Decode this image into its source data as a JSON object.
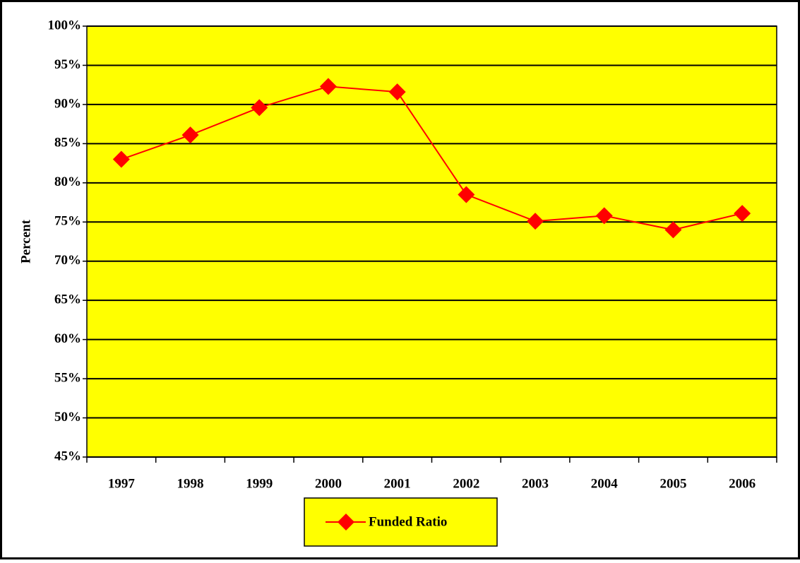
{
  "chart_data": {
    "type": "line",
    "y_label": "Percent",
    "categories": [
      "1997",
      "1998",
      "1999",
      "2000",
      "2001",
      "2002",
      "2003",
      "2004",
      "2005",
      "2006"
    ],
    "series": [
      {
        "name": "Funded Ratio",
        "color": "#ff0000",
        "values": [
          83.0,
          86.1,
          89.6,
          92.3,
          91.6,
          78.5,
          75.1,
          75.8,
          74.0,
          76.1
        ]
      }
    ],
    "ylim": [
      45,
      100
    ],
    "yticks": [
      {
        "value": 45,
        "label": "45%"
      },
      {
        "value": 50,
        "label": "50%"
      },
      {
        "value": 55,
        "label": "55%"
      },
      {
        "value": 60,
        "label": "60%"
      },
      {
        "value": 65,
        "label": "65%"
      },
      {
        "value": 70,
        "label": "70%"
      },
      {
        "value": 75,
        "label": "75%"
      },
      {
        "value": 80,
        "label": "80%"
      },
      {
        "value": 85,
        "label": "85%"
      },
      {
        "value": 90,
        "label": "90%"
      },
      {
        "value": 95,
        "label": "95%"
      },
      {
        "value": 100,
        "label": "100%"
      }
    ],
    "grid": true,
    "plot_background": "#ffff00",
    "legend": "bottom"
  }
}
